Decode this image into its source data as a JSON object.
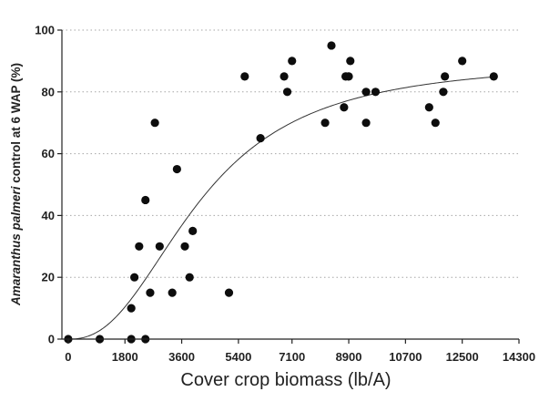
{
  "chart_data": {
    "type": "scatter",
    "title": "",
    "xlabel": "Cover crop biomass (lb/A)",
    "ylabel": {
      "prefix": "",
      "italic": "Amaranthus palmeri",
      "suffix": " control at 6 WAP (%)"
    },
    "xlim": [
      -200,
      14300
    ],
    "ylim": [
      0,
      100
    ],
    "x_ticks": [
      0,
      1800,
      3600,
      5400,
      7100,
      8900,
      10700,
      12500,
      14300
    ],
    "x_tick_labels": [
      "0",
      "1800",
      "3600",
      "5400",
      "7100",
      "8900",
      "10700",
      "12500",
      "14300"
    ],
    "y_ticks": [
      0,
      20,
      40,
      60,
      80,
      100
    ],
    "y_tick_labels": [
      "0",
      "20",
      "40",
      "60",
      "80",
      "100"
    ],
    "grid": "horizontal dotted",
    "colors": {
      "points": "#0d0d0d",
      "curve": "#333333",
      "axis": "#222222",
      "grid": "#a6a6a6"
    },
    "points": [
      {
        "x": 0,
        "y": 0
      },
      {
        "x": 1000,
        "y": 0
      },
      {
        "x": 2000,
        "y": 0
      },
      {
        "x": 2450,
        "y": 0
      },
      {
        "x": 2000,
        "y": 10
      },
      {
        "x": 2100,
        "y": 20
      },
      {
        "x": 2250,
        "y": 30
      },
      {
        "x": 2450,
        "y": 45
      },
      {
        "x": 2600,
        "y": 15
      },
      {
        "x": 2750,
        "y": 70
      },
      {
        "x": 2900,
        "y": 30
      },
      {
        "x": 3300,
        "y": 15
      },
      {
        "x": 3450,
        "y": 55
      },
      {
        "x": 3700,
        "y": 30
      },
      {
        "x": 3850,
        "y": 20
      },
      {
        "x": 3950,
        "y": 35
      },
      {
        "x": 5100,
        "y": 15
      },
      {
        "x": 5600,
        "y": 85
      },
      {
        "x": 6100,
        "y": 65
      },
      {
        "x": 6850,
        "y": 85
      },
      {
        "x": 6950,
        "y": 80
      },
      {
        "x": 7100,
        "y": 90
      },
      {
        "x": 8150,
        "y": 70
      },
      {
        "x": 8350,
        "y": 95
      },
      {
        "x": 8750,
        "y": 75
      },
      {
        "x": 8800,
        "y": 85
      },
      {
        "x": 8900,
        "y": 85
      },
      {
        "x": 8950,
        "y": 90
      },
      {
        "x": 9450,
        "y": 80
      },
      {
        "x": 9450,
        "y": 70
      },
      {
        "x": 9750,
        "y": 80
      },
      {
        "x": 11450,
        "y": 75
      },
      {
        "x": 11650,
        "y": 70
      },
      {
        "x": 11900,
        "y": 80
      },
      {
        "x": 11950,
        "y": 85
      },
      {
        "x": 12500,
        "y": 90
      },
      {
        "x": 13500,
        "y": 85
      }
    ],
    "fit_curve": {
      "type": "logistic",
      "ymax": 90,
      "x50": 4200,
      "slope": 2.4
    }
  }
}
